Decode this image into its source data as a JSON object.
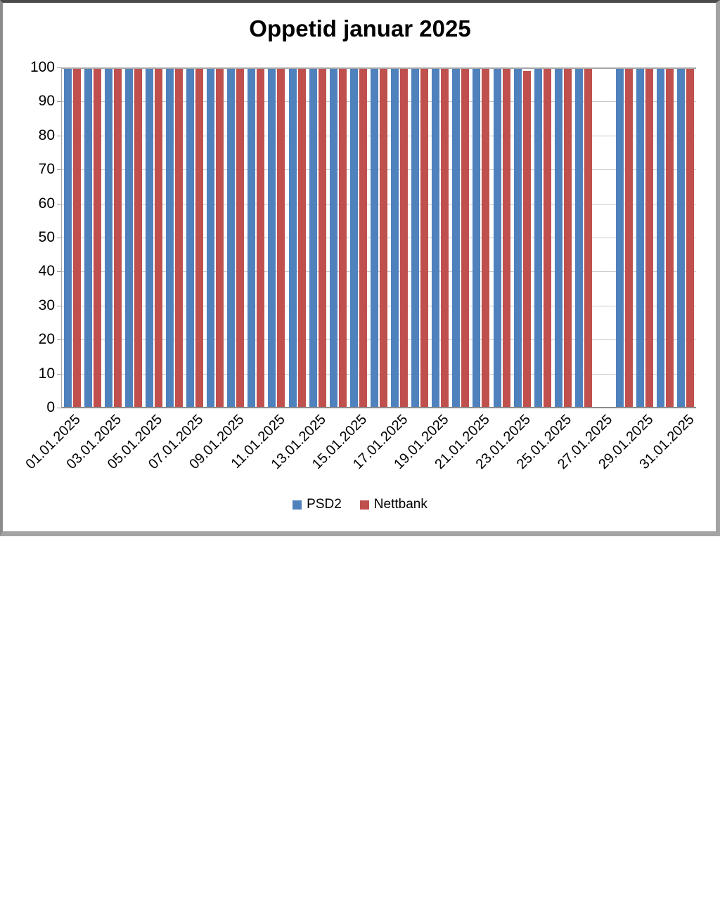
{
  "title": "Oppetid januar 2025",
  "y_axis": {
    "min": 0,
    "max": 100,
    "step": 10,
    "tick_labels": [
      "100",
      "90",
      "80",
      "70",
      "60",
      "50",
      "40",
      "30",
      "20",
      "10",
      "0"
    ]
  },
  "x_axis": {
    "tick_labels": [
      "01.01.2025",
      "03.01.2025",
      "05.01.2025",
      "07.01.2025",
      "09.01.2025",
      "11.01.2025",
      "13.01.2025",
      "15.01.2025",
      "17.01.2025",
      "19.01.2025",
      "21.01.2025",
      "23.01.2025",
      "25.01.2025",
      "27.01.2025",
      "29.01.2025",
      "31.01.2025"
    ]
  },
  "legend": {
    "position": "bottom",
    "items": [
      {
        "label": "PSD2",
        "color": "#4F81BD"
      },
      {
        "label": "Nettbank",
        "color": "#C0504D"
      }
    ]
  },
  "colors": {
    "psd2_blue": "#4F81BD",
    "nettbank_red": "#C0504D",
    "gridline": "#c9c9c9",
    "axis": "#8c8c8c"
  },
  "chart_data": {
    "type": "bar",
    "title": "Oppetid januar 2025",
    "xlabel": "",
    "ylabel": "",
    "ylim": [
      0,
      100
    ],
    "ytick_step": 10,
    "grid": true,
    "legend_position": "bottom",
    "categories": [
      "01.01.2025",
      "02.01.2025",
      "03.01.2025",
      "04.01.2025",
      "05.01.2025",
      "06.01.2025",
      "07.01.2025",
      "08.01.2025",
      "09.01.2025",
      "10.01.2025",
      "11.01.2025",
      "12.01.2025",
      "13.01.2025",
      "14.01.2025",
      "15.01.2025",
      "16.01.2025",
      "17.01.2025",
      "18.01.2025",
      "19.01.2025",
      "20.01.2025",
      "21.01.2025",
      "22.01.2025",
      "23.01.2025",
      "24.01.2025",
      "25.01.2025",
      "26.01.2025",
      "27.01.2025",
      "28.01.2025",
      "29.01.2025",
      "30.01.2025",
      "31.01.2025"
    ],
    "series": [
      {
        "name": "PSD2",
        "color": "#4F81BD",
        "values": [
          99.5,
          99.5,
          99.5,
          99.5,
          99.5,
          99.5,
          99.5,
          99.5,
          99.5,
          99.5,
          99.5,
          99.5,
          99.5,
          99.5,
          99.5,
          99.5,
          99.5,
          99.5,
          99.5,
          99.5,
          99.5,
          99.5,
          99.5,
          99.5,
          99.5,
          99.5,
          null,
          99.5,
          99.5,
          99.5,
          99.5
        ]
      },
      {
        "name": "Nettbank",
        "color": "#C0504D",
        "values": [
          100,
          100,
          100,
          100,
          100,
          100,
          100,
          100,
          100,
          100,
          100,
          100,
          100,
          100,
          100,
          100,
          100,
          100,
          100,
          100,
          100,
          100,
          99,
          100,
          100,
          100,
          null,
          100,
          100,
          100,
          100
        ]
      }
    ]
  }
}
